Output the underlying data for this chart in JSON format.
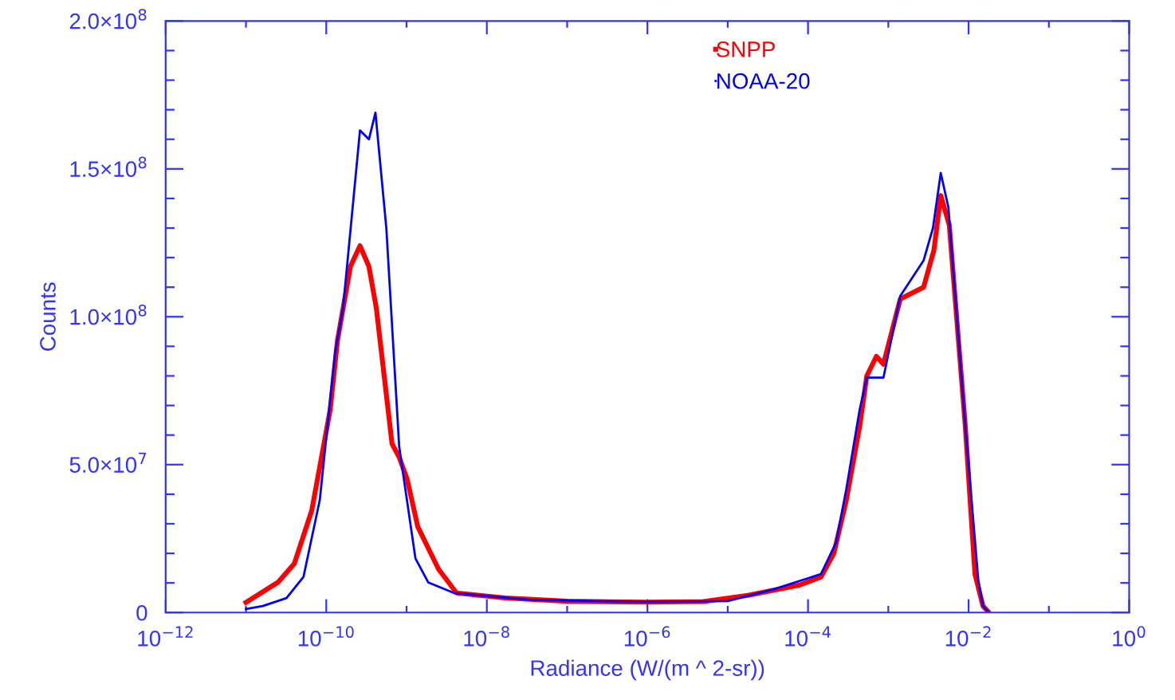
{
  "chart_data": {
    "type": "line",
    "xlabel": "Radiance (W/(m ^ 2-sr))",
    "ylabel": "Counts",
    "log": "x",
    "grid": false,
    "legend": "top",
    "marker": "none",
    "line_style": "solid",
    "xlim": [
      1e-12,
      1
    ],
    "ylim": [
      0,
      200000000
    ],
    "xticks": [
      {
        "value": 1e-12,
        "label": "10$^{−12}$"
      },
      {
        "value": 1e-11,
        "label": null
      },
      {
        "value": 1e-10,
        "label": "10$^{−10}$"
      },
      {
        "value": 1e-09,
        "label": null
      },
      {
        "value": 1e-08,
        "label": "10$^{−8}$"
      },
      {
        "value": 1e-07,
        "label": null
      },
      {
        "value": 1e-06,
        "label": "10$^{−6}$"
      },
      {
        "value": 1e-05,
        "label": null
      },
      {
        "value": 0.0001,
        "label": "10$^{−4}$"
      },
      {
        "value": 0.001,
        "label": null
      },
      {
        "value": 0.01,
        "label": "10$^{−2}$"
      },
      {
        "value": 0.1,
        "label": null
      },
      {
        "value": 1,
        "label": "10$^{0}$"
      }
    ],
    "yticks": [
      0,
      {
        "value": 10000000,
        "label": null
      },
      {
        "value": 20000000,
        "label": null
      },
      {
        "value": 30000000,
        "label": null
      },
      {
        "value": 40000000,
        "label": null
      },
      {
        "value": 50000000,
        "label": "5.0×10$^{7}$"
      },
      {
        "value": 60000000,
        "label": null
      },
      {
        "value": 70000000,
        "label": null
      },
      {
        "value": 80000000,
        "label": null
      },
      {
        "value": 90000000,
        "label": null
      },
      {
        "value": 100000000,
        "label": "1.0×10$^{8}$"
      },
      {
        "value": 110000000,
        "label": null
      },
      {
        "value": 120000000,
        "label": null
      },
      {
        "value": 130000000,
        "label": null
      },
      {
        "value": 140000000,
        "label": null
      },
      {
        "value": 150000000,
        "label": "1.5×10$^{8}$"
      },
      {
        "value": 160000000,
        "label": null
      },
      {
        "value": 170000000,
        "label": null
      },
      {
        "value": 180000000,
        "label": null
      },
      {
        "value": 190000000,
        "label": null
      },
      {
        "value": 200000000,
        "label": "2.0×10$^{8}$"
      }
    ],
    "series": [
      {
        "name": "SNPP",
        "color": "#ff0000",
        "x": [
          1e-11,
          2.5e-11,
          4e-11,
          6.6e-11,
          1.12e-10,
          1.38e-10,
          2e-10,
          2.63e-10,
          3.4e-10,
          4.2e-10,
          6.6e-10,
          8.1e-10,
          1.02e-09,
          1.38e-09,
          2.5e-09,
          4.2e-09,
          8.1e-09,
          1.7e-08,
          1e-07,
          1e-06,
          5e-06,
          1.78e-05,
          7.9e-05,
          0.000145,
          0.00021,
          0.0003,
          0.00044,
          0.00054,
          0.00071,
          0.00087,
          0.00141,
          0.00275,
          0.0037,
          0.0045,
          0.00575,
          0.0091,
          0.012,
          0.0151,
          0.0174
        ],
        "values": [
          3400000,
          10200000,
          16500000,
          34500000,
          68600000,
          92000000,
          117000000,
          124000000,
          117000000,
          103000000,
          57000000,
          52500000,
          45000000,
          29000000,
          14700000,
          6600000,
          5800000,
          4900000,
          3800000,
          3500000,
          3700000,
          5800000,
          9300000,
          12000000,
          20000000,
          38000000,
          63000000,
          80000000,
          86600000,
          84000000,
          106000000,
          110000000,
          122500000,
          141000000,
          131000000,
          63000000,
          13000000,
          2200000,
          400000
        ]
      },
      {
        "name": "NOAA-20",
        "color": "#0000ff",
        "x": [
          1e-11,
          1.62e-11,
          3.2e-11,
          5.2e-11,
          8.3e-11,
          1.29e-10,
          1.62e-10,
          2.63e-10,
          3.4e-10,
          4.1e-10,
          5.6e-10,
          8.1e-10,
          1.29e-09,
          1.86e-09,
          3.9e-09,
          3.5e-08,
          1e-06,
          1e-05,
          3.8e-05,
          0.000145,
          0.000224,
          0.0003,
          0.00044,
          0.00054,
          0.00087,
          0.00141,
          0.00275,
          0.0036,
          0.0045,
          0.0056,
          0.0091,
          0.0132,
          0.0151,
          0.0174
        ],
        "values": [
          1200000,
          2200000,
          4900000,
          12000000,
          38000000,
          88000000,
          103000000,
          163000000,
          160000000,
          169000000,
          130000000,
          56000000,
          18300000,
          10200000,
          6600000,
          4300000,
          3600000,
          3900000,
          7900000,
          13000000,
          23700000,
          41700000,
          68600000,
          79400000,
          79400000,
          107000000,
          119000000,
          130000000,
          148600000,
          137000000,
          63000000,
          11000000,
          2200000,
          400000
        ]
      }
    ]
  }
}
